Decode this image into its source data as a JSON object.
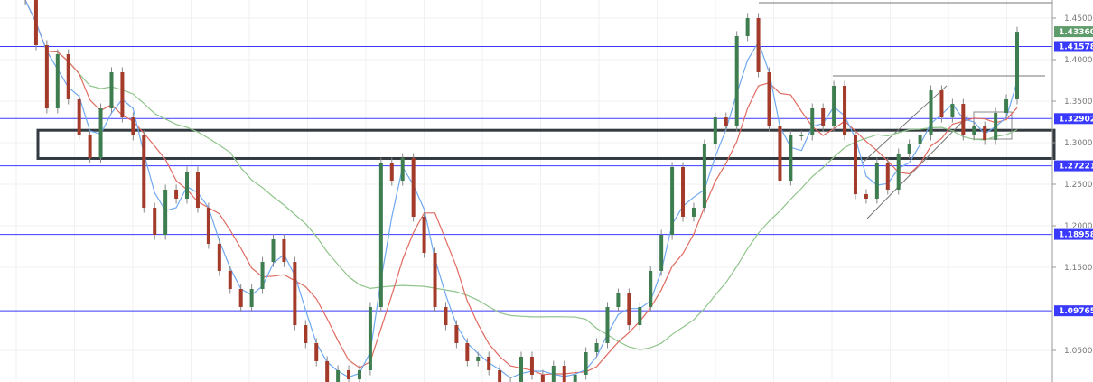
{
  "chart_data": {
    "type": "candlestick",
    "title": "",
    "xlabel": "",
    "ylabel": "",
    "ylim": [
      1.012,
      1.4717
    ],
    "grid": true,
    "y_ticks": [
      "1.45000",
      "1.40000",
      "1.35000",
      "1.30000",
      "1.25000",
      "1.20000",
      "1.15000",
      "1.05000"
    ],
    "closes": [
      1.4717,
      1.4174,
      1.3413,
      1.4065,
      1.3522,
      1.3087,
      1.2815,
      1.3413,
      1.3848,
      1.3304,
      1.3087,
      1.2217,
      1.1891,
      1.2435,
      1.2326,
      1.2652,
      1.2217,
      1.1783,
      1.1457,
      1.1239,
      1.1022,
      1.1239,
      1.1565,
      1.1837,
      1.1565,
      1.0804,
      1.0587,
      1.037,
      1.012,
      1.0261,
      1.0152,
      1.0261,
      1.1022,
      1.2761,
      1.2543,
      1.2815,
      1.2109,
      1.1674,
      1.1022,
      1.0804,
      1.0587,
      1.037,
      1.0424,
      1.0261,
      1.012,
      1.012,
      1.0424,
      1.0207,
      1.012,
      1.0315,
      1.012,
      1.0207,
      1.0478,
      1.0587,
      1.1022,
      1.1185,
      1.0804,
      1.1022,
      1.1457,
      1.1891,
      1.2707,
      1.2109,
      1.2217,
      1.2978,
      1.3304,
      1.3196,
      1.4283,
      1.45,
      1.3848,
      1.3196,
      1.2543,
      1.3087,
      1.3087,
      1.3413,
      1.3196,
      1.3685,
      1.3087,
      1.238,
      1.2326,
      1.2761,
      1.2435,
      1.287,
      1.2978,
      1.3087,
      1.363,
      1.3304,
      1.3467,
      1.3087,
      1.3196,
      1.3033,
      1.3359,
      1.3522,
      1.4336
    ],
    "horizontal_levels": [
      {
        "price": 1.41578,
        "label": "1.41578"
      },
      {
        "price": 1.32902,
        "label": "1.32902"
      },
      {
        "price": 1.27221,
        "label": "1.27221"
      },
      {
        "price": 1.18958,
        "label": "1.18958"
      },
      {
        "price": 1.09765,
        "label": "1.09765"
      }
    ],
    "last_price": {
      "price": 1.4336,
      "label": "1.43360"
    },
    "zone": {
      "top": 1.315,
      "bottom": 1.281
    },
    "resistance_lines": [
      1.4685,
      1.3804
    ],
    "colors": {
      "up": "#3e7d4f",
      "down": "#a33a2a",
      "level": "#3a3aff",
      "last_price": "#5e9c6b",
      "ma_fast": "#6fa8f0",
      "ma_mid": "#e06a60",
      "ma_slow": "#8fc48a",
      "zone": "#333a40"
    }
  }
}
